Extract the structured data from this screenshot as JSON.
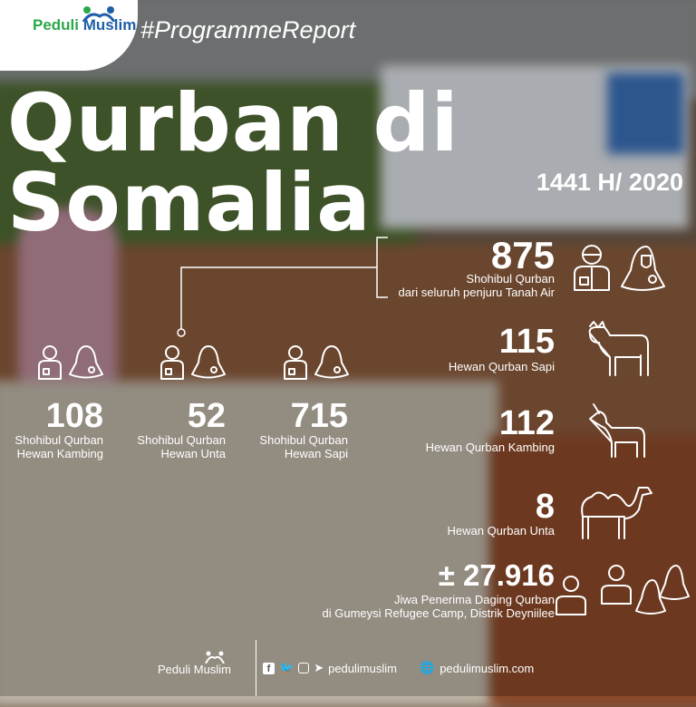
{
  "header": {
    "logo_text_1": "Peduli",
    "logo_text_2": "Muslim",
    "hashtag": "#ProgrammeReport"
  },
  "title": "Qurban di Somalia",
  "subtitle": "1441 H/ 2020",
  "right_stats": [
    {
      "value": "875",
      "label_1": "Shohibul Qurban",
      "label_2": "dari seluruh penjuru Tanah Air",
      "icon": "man-woman-icon"
    },
    {
      "value": "115",
      "label_1": "Hewan Qurban Sapi",
      "icon": "cow-icon"
    },
    {
      "value": "112",
      "label_1": "Hewan Qurban Kambing",
      "icon": "goat-icon"
    },
    {
      "value": "8",
      "label_1": "Hewan Qurban Unta",
      "icon": "camel-icon"
    },
    {
      "value": "± 27.916",
      "label_1": "Jiwa Penerima Daging Qurban",
      "label_2": "di Gumeysi Refugee Camp, Distrik Deyniilee",
      "icon": "group-icon"
    }
  ],
  "left_stats": [
    {
      "value": "108",
      "label_1": "Shohibul Qurban",
      "label_2": "Hewan Kambing"
    },
    {
      "value": "52",
      "label_1": "Shohibul Qurban",
      "label_2": "Hewan Unta"
    },
    {
      "value": "715",
      "label_1": "Shohibul Qurban",
      "label_2": "Hewan Sapi"
    }
  ],
  "footer": {
    "logo_text_1": "Peduli",
    "logo_text_2": "Muslim",
    "social_handle": "pedulimuslim",
    "website": "pedulimuslim.com"
  },
  "colors": {
    "logo_green": "#2aa84a",
    "logo_blue": "#1f5fa8"
  }
}
